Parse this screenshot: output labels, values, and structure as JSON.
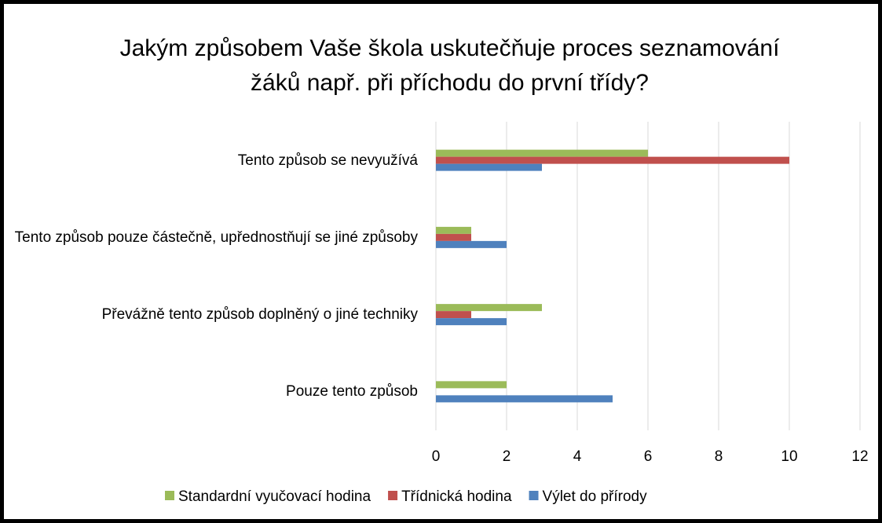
{
  "chart_data": {
    "type": "hbar",
    "title": "Jakým způsobem Vaše škola uskutečňuje proces seznamování žáků např. při příchodu do první třídy?",
    "categories": [
      "Tento způsob se nevyužívá",
      "Tento způsob pouze částečně, upřednostňují se jiné způsoby",
      "Převážně tento způsob doplněný o jiné techniky",
      "Pouze tento způsob"
    ],
    "series": [
      {
        "name": "Standardní vyučovací hodina",
        "color": "#9bbb59",
        "values": [
          6,
          1,
          3,
          2
        ]
      },
      {
        "name": "Třídnická hodina",
        "color": "#c0504d",
        "values": [
          10,
          1,
          1,
          0
        ]
      },
      {
        "name": "Výlet do přírody",
        "color": "#4f81bd",
        "values": [
          3,
          2,
          2,
          5
        ]
      }
    ],
    "xlim": [
      0,
      12
    ],
    "xticks": [
      0,
      2,
      4,
      6,
      8,
      10,
      12
    ],
    "grid": true
  }
}
